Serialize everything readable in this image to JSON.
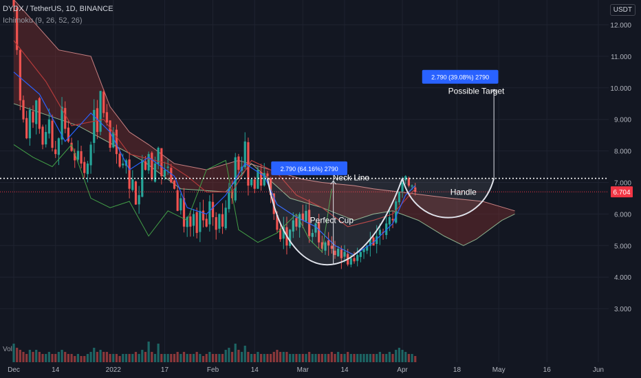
{
  "header": {
    "symbol_line": "DYDX / TetherUS, 1D, BINANCE",
    "indicator_line": "Ichimoku (9, 26, 52, 26)",
    "volume_label": "Vol",
    "currency": "USDT"
  },
  "colors": {
    "background": "#131722",
    "up": "#26a69a",
    "down": "#ef5350",
    "tenkan": "#2962ff",
    "kijun": "#b33a3a",
    "chikou": "#43a047",
    "span_a": "#a5d6a7",
    "span_b": "#ef9a9a",
    "cloud_bear": "#7a2e2e",
    "cloud_bull": "#2e7d32",
    "price_label": "#f23645",
    "annotation_box": "#2962ff",
    "drawing": "#e0e3eb"
  },
  "chart_data": {
    "type": "candlestick",
    "y_axis": {
      "min": 2.0,
      "max": 12.4,
      "ticks": [
        "12.000",
        "11.000",
        "10.000",
        "9.000",
        "8.000",
        "7.000",
        "6.000",
        "5.000",
        "4.000",
        "3.000"
      ]
    },
    "x_axis": {
      "ticks": [
        {
          "label": "Dec",
          "day": 0
        },
        {
          "label": "14",
          "day": 13
        },
        {
          "label": "2022",
          "day": 31
        },
        {
          "label": "17",
          "day": 47
        },
        {
          "label": "Feb",
          "day": 62
        },
        {
          "label": "14",
          "day": 75
        },
        {
          "label": "Mar",
          "day": 90
        },
        {
          "label": "14",
          "day": 103
        },
        {
          "label": "Apr",
          "day": 121
        },
        {
          "label": "18",
          "day": 138
        },
        {
          "label": "May",
          "day": 151
        },
        {
          "label": "16",
          "day": 166
        },
        {
          "label": "Jun",
          "day": 182
        }
      ]
    },
    "last_day": 125,
    "candles_close": [
      12.6,
      11.2,
      9.6,
      9.0,
      8.4,
      9.3,
      8.9,
      9.6,
      8.7,
      8.2,
      8.6,
      9.0,
      8.1,
      7.9,
      8.4,
      9.4,
      8.7,
      8.3,
      8.0,
      7.7,
      8.0,
      7.6,
      7.3,
      7.6,
      8.2,
      9.3,
      8.6,
      9.9,
      9.2,
      8.9,
      8.1,
      8.6,
      7.9,
      7.5,
      7.6,
      7.7,
      6.8,
      7.1,
      6.3,
      6.6,
      7.7,
      7.4,
      7.9,
      7.1,
      7.6,
      8.1,
      7.2,
      7.4,
      7.5,
      7.0,
      6.8,
      6.1,
      6.5,
      5.6,
      5.9,
      5.6,
      6.0,
      5.4,
      6.1,
      5.8,
      5.6,
      6.4,
      5.9,
      5.5,
      6.0,
      5.6,
      6.2,
      6.8,
      6.5,
      7.8,
      7.4,
      7.5,
      8.3,
      6.9,
      7.1,
      6.8,
      7.4,
      6.9,
      7.3,
      7.2,
      6.6,
      6.0,
      5.5,
      5.2,
      5.6,
      5.0,
      5.5,
      5.8,
      5.6,
      6.0,
      5.8,
      6.1,
      5.3,
      5.4,
      5.7,
      5.1,
      4.9,
      5.1,
      5.0,
      4.9,
      4.7,
      4.9,
      4.6,
      4.8,
      4.4,
      4.6,
      4.5,
      4.7,
      4.8,
      4.9,
      5.0,
      5.2,
      5.0,
      5.3,
      5.5,
      5.4,
      5.7,
      5.9,
      5.8,
      6.4,
      6.7,
      7.0,
      7.2,
      6.9,
      6.9,
      6.7
    ],
    "volume": [
      9,
      7,
      6,
      5,
      4,
      6,
      5,
      6,
      5,
      4,
      4,
      5,
      4,
      4,
      5,
      6,
      5,
      4,
      4,
      3,
      4,
      3,
      3,
      4,
      5,
      7,
      5,
      6,
      5,
      5,
      4,
      4,
      4,
      3,
      4,
      4,
      4,
      4,
      5,
      4,
      6,
      5,
      10,
      5,
      4,
      9,
      4,
      4,
      4,
      4,
      4,
      5,
      4,
      5,
      4,
      4,
      4,
      5,
      4,
      3,
      4,
      5,
      4,
      4,
      4,
      4,
      6,
      7,
      5,
      9,
      6,
      5,
      8,
      5,
      4,
      4,
      5,
      4,
      4,
      4,
      4,
      5,
      6,
      5,
      5,
      5,
      4,
      4,
      4,
      4,
      4,
      4,
      5,
      4,
      4,
      4,
      4,
      4,
      4,
      5,
      4,
      5,
      4,
      4,
      5,
      4,
      4,
      4,
      4,
      4,
      4,
      4,
      4,
      4,
      5,
      4,
      4,
      5,
      4,
      6,
      7,
      6,
      5,
      4,
      4,
      3
    ],
    "tenkan": [
      [
        0,
        10.5
      ],
      [
        8,
        9.8
      ],
      [
        16,
        8.3
      ],
      [
        24,
        9.2
      ],
      [
        30,
        8.6
      ],
      [
        36,
        7.4
      ],
      [
        42,
        7.8
      ],
      [
        50,
        7.2
      ],
      [
        54,
        6.2
      ],
      [
        60,
        6.0
      ],
      [
        66,
        6.6
      ],
      [
        72,
        7.6
      ],
      [
        78,
        7.2
      ],
      [
        82,
        6.3
      ],
      [
        88,
        5.9
      ],
      [
        94,
        5.6
      ],
      [
        100,
        5.0
      ],
      [
        106,
        4.7
      ],
      [
        112,
        5.1
      ],
      [
        118,
        5.7
      ],
      [
        122,
        6.6
      ],
      [
        125,
        6.9
      ]
    ],
    "kijun": [
      [
        0,
        11.5
      ],
      [
        10,
        10.2
      ],
      [
        18,
        8.8
      ],
      [
        28,
        9.0
      ],
      [
        36,
        7.9
      ],
      [
        48,
        7.6
      ],
      [
        54,
        7.2
      ],
      [
        60,
        6.7
      ],
      [
        68,
        6.7
      ],
      [
        74,
        7.7
      ],
      [
        82,
        7.3
      ],
      [
        88,
        6.6
      ],
      [
        96,
        6.2
      ],
      [
        104,
        5.6
      ],
      [
        112,
        5.8
      ],
      [
        118,
        6.0
      ],
      [
        125,
        6.8
      ]
    ],
    "chikou": [
      [
        0,
        8.2
      ],
      [
        6,
        7.8
      ],
      [
        12,
        7.5
      ],
      [
        18,
        8.2
      ],
      [
        24,
        6.5
      ],
      [
        30,
        6.2
      ],
      [
        36,
        6.4
      ],
      [
        42,
        5.3
      ],
      [
        48,
        6.1
      ],
      [
        54,
        5.8
      ],
      [
        60,
        7.4
      ],
      [
        66,
        7.7
      ],
      [
        70,
        5.5
      ],
      [
        76,
        5.1
      ],
      [
        82,
        5.4
      ],
      [
        88,
        6.0
      ],
      [
        92,
        5.2
      ],
      [
        96,
        4.8
      ],
      [
        99,
        6.8
      ]
    ],
    "span_a": [
      [
        0,
        9.5
      ],
      [
        20,
        8.8
      ],
      [
        40,
        7.7
      ],
      [
        52,
        6.8
      ],
      [
        66,
        6.7
      ],
      [
        74,
        7.6
      ],
      [
        86,
        6.5
      ],
      [
        96,
        6.2
      ],
      [
        106,
        5.8
      ],
      [
        112,
        6.0
      ],
      [
        118,
        6.1
      ],
      [
        126,
        5.8
      ],
      [
        134,
        5.3
      ],
      [
        140,
        5.0
      ],
      [
        144,
        5.2
      ],
      [
        148,
        5.5
      ],
      [
        152,
        5.8
      ],
      [
        156,
        6.0
      ]
    ],
    "span_b": [
      [
        0,
        12.8
      ],
      [
        14,
        11.2
      ],
      [
        24,
        11.0
      ],
      [
        30,
        9.4
      ],
      [
        36,
        8.6
      ],
      [
        42,
        8.2
      ],
      [
        50,
        7.6
      ],
      [
        60,
        7.4
      ],
      [
        70,
        7.7
      ],
      [
        80,
        7.4
      ],
      [
        90,
        7.1
      ],
      [
        96,
        7.0
      ],
      [
        106,
        6.9
      ],
      [
        112,
        6.8
      ],
      [
        120,
        6.7
      ],
      [
        128,
        6.6
      ],
      [
        136,
        6.5
      ],
      [
        146,
        6.4
      ],
      [
        156,
        6.1
      ]
    ],
    "price_line": 6.704,
    "neck_line": 7.13,
    "annotations": [
      {
        "id": "cup",
        "text": "Perfect Cup",
        "day": 99,
        "value": 5.8
      },
      {
        "id": "neck",
        "text": "Neck Line",
        "day": 105,
        "value": 7.15
      },
      {
        "id": "handle",
        "text": "Handle",
        "day": 140,
        "value": 6.7
      },
      {
        "id": "target",
        "text": "Possible Target",
        "day": 144,
        "value": 9.9
      },
      {
        "id": "measure1",
        "text": "2.790 (64.16%) 2790",
        "day": 92,
        "value": 7.45
      },
      {
        "id": "measure2",
        "text": "2.790 (39.08%) 2790",
        "day": 139,
        "value": 10.35
      }
    ],
    "current_price_label": "6.704"
  }
}
